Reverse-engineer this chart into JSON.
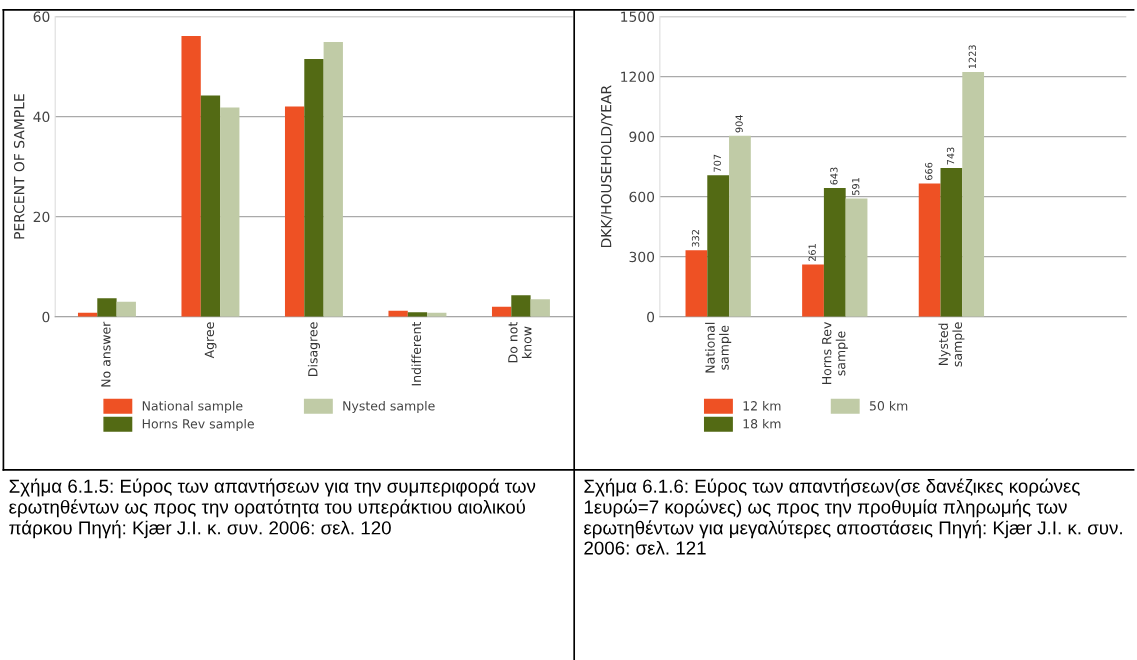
{
  "chart_data": [
    {
      "type": "bar",
      "ylabel": "PERCENT OF SAMPLE",
      "categories": [
        "No answer",
        "Agree",
        "Disagree",
        "Indifferent",
        "Do not\nknow"
      ],
      "series": [
        {
          "name": "National sample",
          "color": "#ee5124",
          "values": [
            0.8,
            56.1,
            42.0,
            1.2,
            2.0
          ]
        },
        {
          "name": "Horns Rev sample",
          "color": "#536a14",
          "values": [
            3.7,
            44.2,
            51.5,
            0.9,
            4.3
          ]
        },
        {
          "name": "Nysted sample",
          "color": "#c0cba6",
          "values": [
            3.0,
            41.8,
            54.9,
            0.8,
            3.5
          ]
        }
      ],
      "ylim": [
        0,
        60
      ],
      "yticks": [
        0,
        20,
        40,
        60
      ],
      "grid": "y",
      "legend": "bottom",
      "annotations": [
        "Σχήμα 6.1.5: Εύρος των απαντήσεων για την συμπεριφορά των ερωτηθέντων ως προς την ορατότητα του υπεράκτιου αιολικού πάρκου Πηγή: Kjær J.I. κ. συν. 2006: σελ. 120"
      ]
    },
    {
      "type": "bar",
      "ylabel": "DKK/HOUSEHOLD/YEAR",
      "categories": [
        "National\nsample",
        "Horns Rev\nsample",
        "Nysted\nsample"
      ],
      "series": [
        {
          "name": "12 km",
          "color": "#ee5124",
          "values": [
            332,
            261,
            666
          ]
        },
        {
          "name": "18 km",
          "color": "#536a14",
          "values": [
            707,
            643,
            743
          ]
        },
        {
          "name": "50 km",
          "color": "#c0cba6",
          "values": [
            904,
            591,
            1223
          ]
        }
      ],
      "ylim": [
        0,
        1500
      ],
      "yticks": [
        0,
        300,
        600,
        900,
        1200,
        1500
      ],
      "grid": "y",
      "legend": "bottom",
      "data_labels": true,
      "annotations": [
        "Σχήμα 6.1.6: Εύρος των απαντήσεων(σε δανέζικες κορώνες 1ευρώ=7 κορώνες) ως προς την προθυμία πληρωμής των ερωτηθέντων για μεγαλύτερες αποστάσεις Πηγή: Kjær J.I. κ. συν. 2006: σελ. 121"
      ]
    }
  ]
}
